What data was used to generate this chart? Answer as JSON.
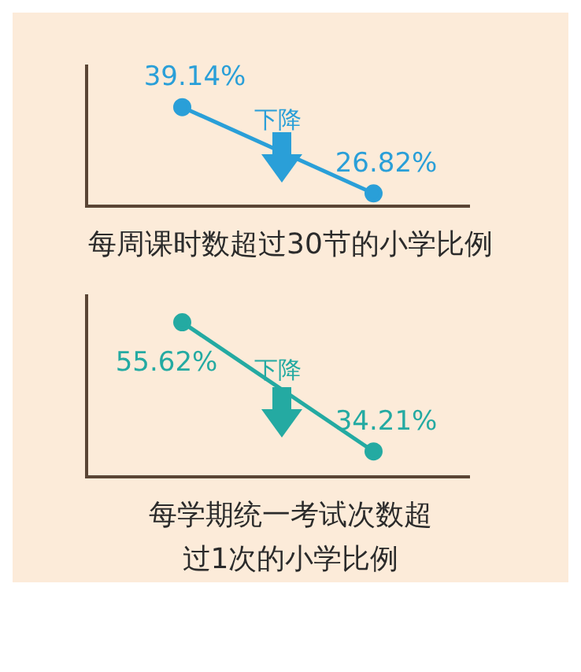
{
  "chart_data": [
    {
      "type": "line",
      "categories": [
        null,
        null
      ],
      "series": [
        {
          "color": "#2a9fd8",
          "values": [
            39.14,
            26.82
          ],
          "value_labels": [
            "39.14%",
            "26.82%"
          ]
        }
      ],
      "marker": "circle",
      "annotations": [
        "下降"
      ],
      "title": "每周课时数超过30节的小学比例"
    },
    {
      "type": "line",
      "categories": [
        null,
        null
      ],
      "series": [
        {
          "color": "#24aaa2",
          "values": [
            55.62,
            34.21
          ],
          "value_labels": [
            "55.62%",
            "34.21%"
          ]
        }
      ],
      "marker": "circle",
      "annotations": [
        "下降"
      ],
      "title": "每学期统一考试次数超过1次的小学比例"
    }
  ]
}
